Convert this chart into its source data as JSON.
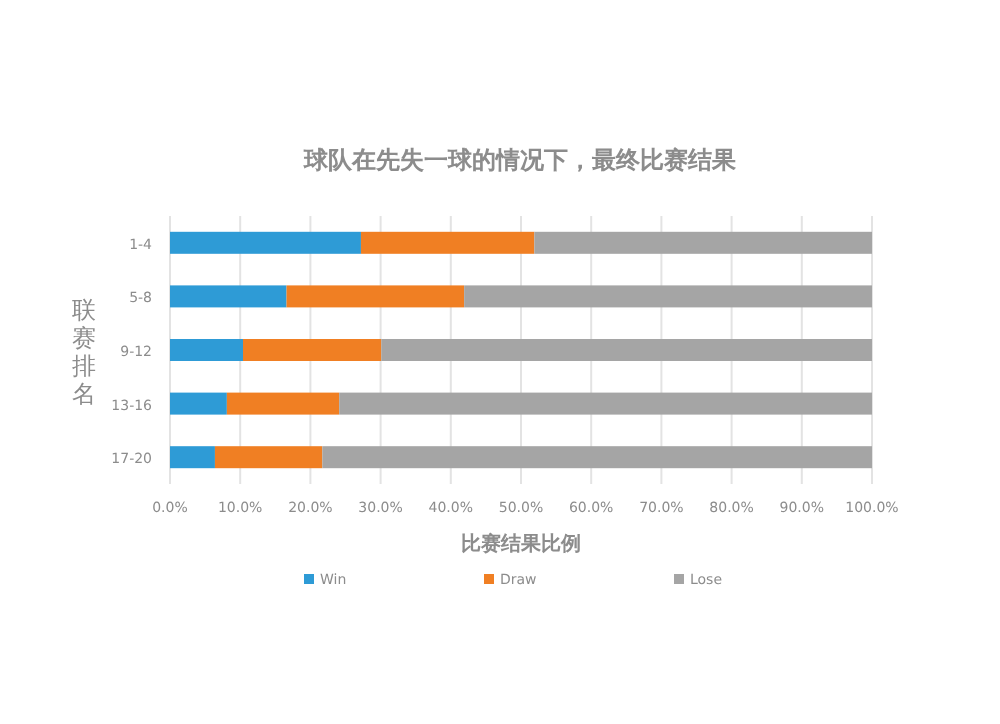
{
  "chart_data": {
    "type": "bar",
    "orientation": "horizontal",
    "stacked": true,
    "title": "球队在先失一球的情况下，最终比赛结果",
    "xlabel": "比赛结果比例",
    "ylabel": "联赛排名",
    "categories": [
      "1-4",
      "5-8",
      "9-12",
      "13-16",
      "17-20"
    ],
    "series": [
      {
        "name": "Win",
        "color": "#2e9bd6",
        "values": [
          27.2,
          16.6,
          10.4,
          8.1,
          6.4
        ]
      },
      {
        "name": "Draw",
        "color": "#f07f23",
        "values": [
          24.7,
          25.3,
          19.7,
          16.0,
          15.3
        ]
      },
      {
        "name": "Lose",
        "color": "#a5a5a5",
        "values": [
          48.1,
          58.1,
          69.9,
          75.9,
          78.3
        ]
      }
    ],
    "xlim": [
      0,
      100
    ],
    "xticks": [
      {
        "value": 0,
        "label": "0.0%"
      },
      {
        "value": 10,
        "label": "10.0%"
      },
      {
        "value": 20,
        "label": "20.0%"
      },
      {
        "value": 30,
        "label": "30.0%"
      },
      {
        "value": 40,
        "label": "40.0%"
      },
      {
        "value": 50,
        "label": "50.0%"
      },
      {
        "value": 60,
        "label": "60.0%"
      },
      {
        "value": 70,
        "label": "70.0%"
      },
      {
        "value": 80,
        "label": "80.0%"
      },
      {
        "value": 90,
        "label": "90.0%"
      },
      {
        "value": 100,
        "label": "100.0%"
      }
    ],
    "grid": "x",
    "legend": "bottom"
  }
}
